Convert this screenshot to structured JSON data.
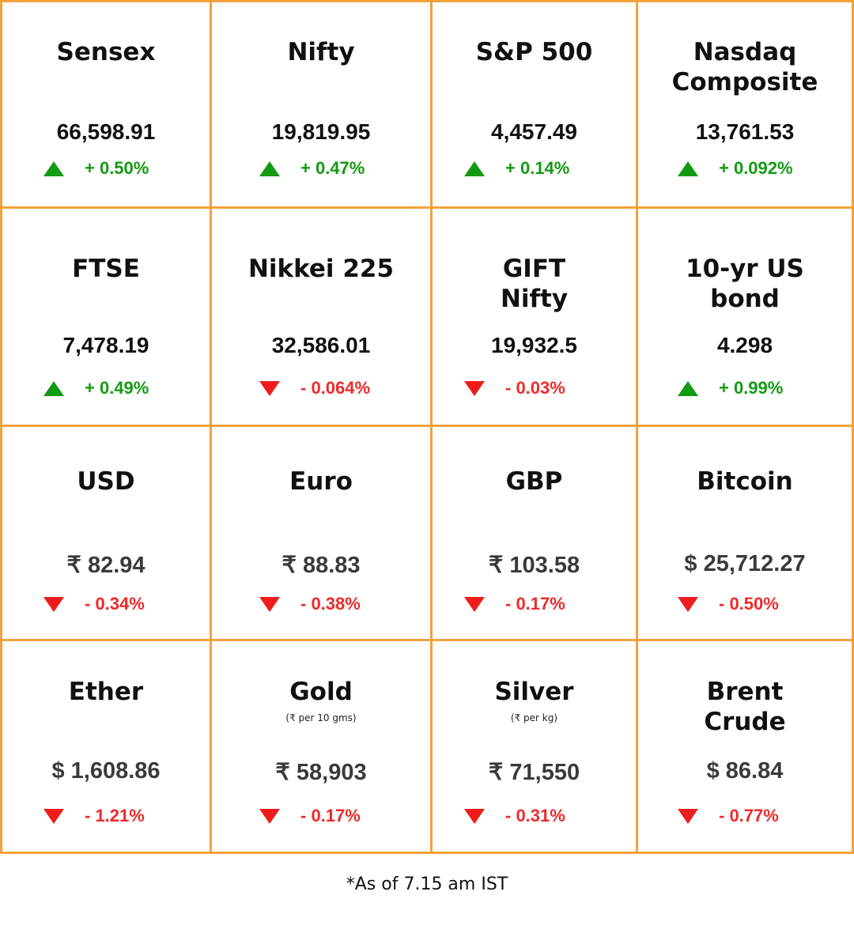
{
  "cells": [
    {
      "title": "Sensex",
      "subtitle": "",
      "value": "66,598.91",
      "direction": "up",
      "change": "+ 0.50%"
    },
    {
      "title": "Nifty",
      "subtitle": "",
      "value": "19,819.95",
      "direction": "up",
      "change": "+ 0.47%"
    },
    {
      "title": "S&P 500",
      "subtitle": "",
      "value": "4,457.49",
      "direction": "up",
      "change": "+ 0.14%"
    },
    {
      "title": "Nasdaq\nComposite",
      "subtitle": "",
      "value": "13,761.53",
      "direction": "up",
      "change": "+ 0.092%"
    },
    {
      "title": "FTSE",
      "subtitle": "",
      "value": "7,478.19",
      "direction": "up",
      "change": "+ 0.49%"
    },
    {
      "title": "Nikkei 225",
      "subtitle": "",
      "value": "32,586.01",
      "direction": "down",
      "change": "- 0.064%"
    },
    {
      "title": "GIFT\nNifty",
      "subtitle": "",
      "value": "19,932.5",
      "direction": "down",
      "change": "- 0.03%"
    },
    {
      "title": "10-yr US\nbond",
      "subtitle": "",
      "value": "4.298",
      "direction": "up",
      "change": "+ 0.99%"
    },
    {
      "title": "USD",
      "subtitle": "",
      "value": "₹ 82.94",
      "direction": "down",
      "change": "- 0.34%"
    },
    {
      "title": "Euro",
      "subtitle": "",
      "value": "₹ 88.83",
      "direction": "down",
      "change": "- 0.38%"
    },
    {
      "title": "GBP",
      "subtitle": "",
      "value": "₹ 103.58",
      "direction": "down",
      "change": "- 0.17%"
    },
    {
      "title": "Bitcoin",
      "subtitle": "",
      "value": "$ 25,712.27",
      "direction": "down",
      "change": "- 0.50%"
    },
    {
      "title": "Ether",
      "subtitle": "",
      "value": "$ 1,608.86",
      "direction": "down",
      "change": "- 1.21%"
    },
    {
      "title": "Gold",
      "subtitle": "(₹ per 10 gms)",
      "value": "₹ 58,903",
      "direction": "down",
      "change": "- 0.17%"
    },
    {
      "title": "Silver",
      "subtitle": "(₹ per kg)",
      "value": "₹ 71,550",
      "direction": "down",
      "change": "- 0.31%"
    },
    {
      "title": "Brent\nCrude",
      "subtitle": "",
      "value": "$ 86.84",
      "direction": "down",
      "change": "- 0.77%"
    }
  ],
  "footnote": "*As of 7.15 am IST",
  "colors": {
    "border": "#f2a23c",
    "up": "#139a13",
    "down": "#ee1c1c"
  }
}
